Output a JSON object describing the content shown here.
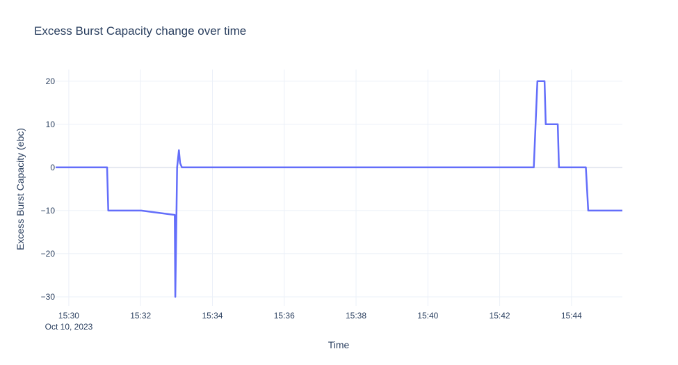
{
  "chart_data": {
    "type": "line",
    "title": "Excess Burst Capacity change over time",
    "xlabel": "Time",
    "ylabel": "Excess Burst Capacity (ebc)",
    "date": "Oct 10, 2023",
    "x_ticks": [
      "15:30",
      "15:32",
      "15:34",
      "15:36",
      "15:38",
      "15:40",
      "15:42",
      "15:44"
    ],
    "y_ticks": [
      20,
      10,
      0,
      -10,
      -20,
      -30
    ],
    "xlim": [
      "15:29:38",
      "15:45:25"
    ],
    "ylim": [
      -32.1,
      22.7
    ],
    "grid": true,
    "line_color": "#636efa",
    "series": [
      {
        "x": [
          "15:29:38",
          "15:31:04",
          "15:31:06",
          "15:32:01",
          "15:32:57",
          "15:32:58",
          "15:33:01",
          "15:33:04",
          "15:33:06",
          "15:33:09",
          "15:42:57",
          "15:43:03",
          "15:43:15",
          "15:43:17",
          "15:43:37",
          "15:43:39",
          "15:44:24",
          "15:44:28",
          "15:45:25"
        ],
        "y": [
          0,
          0,
          -10,
          -10,
          -11,
          -30,
          0,
          4,
          1,
          0,
          0,
          20,
          20,
          10,
          10,
          0,
          0,
          -10,
          -10
        ]
      }
    ]
  }
}
